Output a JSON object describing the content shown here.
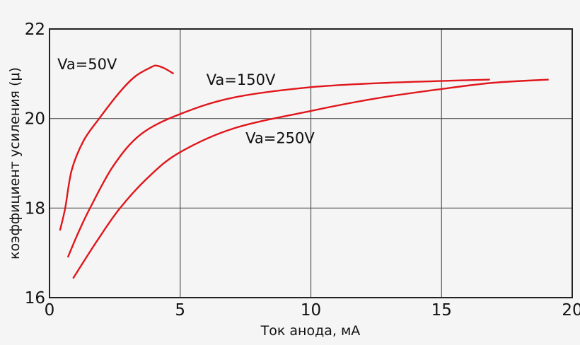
{
  "chart_data": {
    "type": "line",
    "title": "",
    "xlabel": "Ток анода, мА",
    "ylabel": "коэффициент усиления (μ)",
    "xlim": [
      0,
      20
    ],
    "ylim": [
      16,
      22
    ],
    "x_ticks": [
      0,
      5,
      10,
      15,
      20
    ],
    "y_ticks": [
      16,
      18,
      20,
      22
    ],
    "x_tick_labels": [
      "0",
      "5",
      "10",
      "15",
      "20"
    ],
    "y_tick_labels": [
      "16",
      "18",
      "20",
      "22"
    ],
    "grid": true,
    "legend": null,
    "line_color": "#e0161b",
    "series": [
      {
        "name": "Va=50V",
        "label_pos": [
          0.3,
          21.1
        ],
        "points": [
          [
            0.4,
            17.5
          ],
          [
            0.6,
            18.0
          ],
          [
            0.85,
            18.85
          ],
          [
            1.3,
            19.5
          ],
          [
            1.9,
            20.0
          ],
          [
            2.7,
            20.6
          ],
          [
            3.3,
            20.95
          ],
          [
            3.9,
            21.15
          ],
          [
            4.1,
            21.18
          ],
          [
            4.4,
            21.12
          ],
          [
            4.75,
            21.0
          ]
        ]
      },
      {
        "name": "Va=150V",
        "label_pos": [
          6.0,
          20.75
        ],
        "points": [
          [
            0.7,
            16.9
          ],
          [
            1.1,
            17.45
          ],
          [
            1.55,
            18.0
          ],
          [
            2.45,
            18.95
          ],
          [
            3.5,
            19.65
          ],
          [
            5.0,
            20.1
          ],
          [
            7.05,
            20.47
          ],
          [
            10.0,
            20.7
          ],
          [
            13.0,
            20.8
          ],
          [
            16.85,
            20.87
          ]
        ]
      },
      {
        "name": "Va=250V",
        "label_pos": [
          7.5,
          19.45
        ],
        "points": [
          [
            0.9,
            16.43
          ],
          [
            1.8,
            17.25
          ],
          [
            2.7,
            18.0
          ],
          [
            3.8,
            18.7
          ],
          [
            5.0,
            19.25
          ],
          [
            7.05,
            19.78
          ],
          [
            10.0,
            20.17
          ],
          [
            12.5,
            20.45
          ],
          [
            15.0,
            20.66
          ],
          [
            17.0,
            20.8
          ],
          [
            19.1,
            20.87
          ]
        ]
      }
    ]
  }
}
